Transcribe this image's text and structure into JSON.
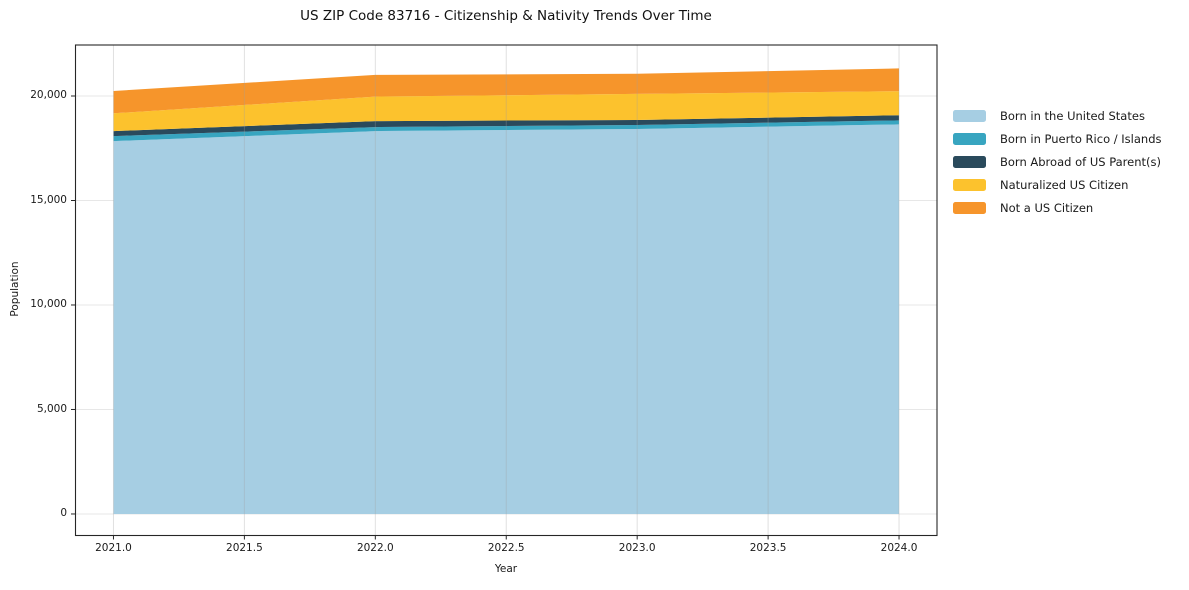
{
  "chart_data": {
    "type": "area",
    "stacked": true,
    "title": "US ZIP Code 83716 - Citizenship & Nativity Trends Over Time",
    "xlabel": "Year",
    "ylabel": "Population",
    "x": [
      2021,
      2022,
      2023,
      2024
    ],
    "series": [
      {
        "name": "Born in the United States",
        "color": "#a6cee3",
        "values": [
          17840,
          18320,
          18420,
          18640
        ]
      },
      {
        "name": "Born in Puerto Rico / Islands",
        "color": "#38a5c0",
        "values": [
          240,
          190,
          190,
          190
        ]
      },
      {
        "name": "Born Abroad of US Parent(s)",
        "color": "#2a4a5c",
        "values": [
          240,
          290,
          240,
          250
        ]
      },
      {
        "name": "Naturalized US Citizen",
        "color": "#fcc22d",
        "values": [
          850,
          1170,
          1250,
          1150
        ]
      },
      {
        "name": "Not a US Citizen",
        "color": "#f6952b",
        "values": [
          1070,
          1040,
          960,
          1090
        ]
      }
    ],
    "totals": [
      20240,
      21010,
      21060,
      21320
    ],
    "x_ticks": {
      "values": [
        2021.0,
        2021.5,
        2022.0,
        2022.5,
        2023.0,
        2023.5,
        2024.0
      ],
      "labels": [
        "2021.0",
        "2021.5",
        "2022.0",
        "2022.5",
        "2023.0",
        "2023.5",
        "2024.0"
      ]
    },
    "y_ticks": {
      "values": [
        0,
        5000,
        10000,
        15000,
        20000
      ],
      "labels": [
        "0",
        "5,000",
        "10,000",
        "15,000",
        "20,000"
      ]
    },
    "xlim": [
      2020.855,
      2024.145
    ],
    "ylim": [
      -1030,
      22440
    ],
    "grid": true,
    "legend_position": "right"
  },
  "style": {
    "grid_color": "#e7e7e7",
    "grid_overlay_color": "rgba(160,160,160,0.32)",
    "spine_color": "#262626",
    "text_color": "#1a1a1a"
  }
}
